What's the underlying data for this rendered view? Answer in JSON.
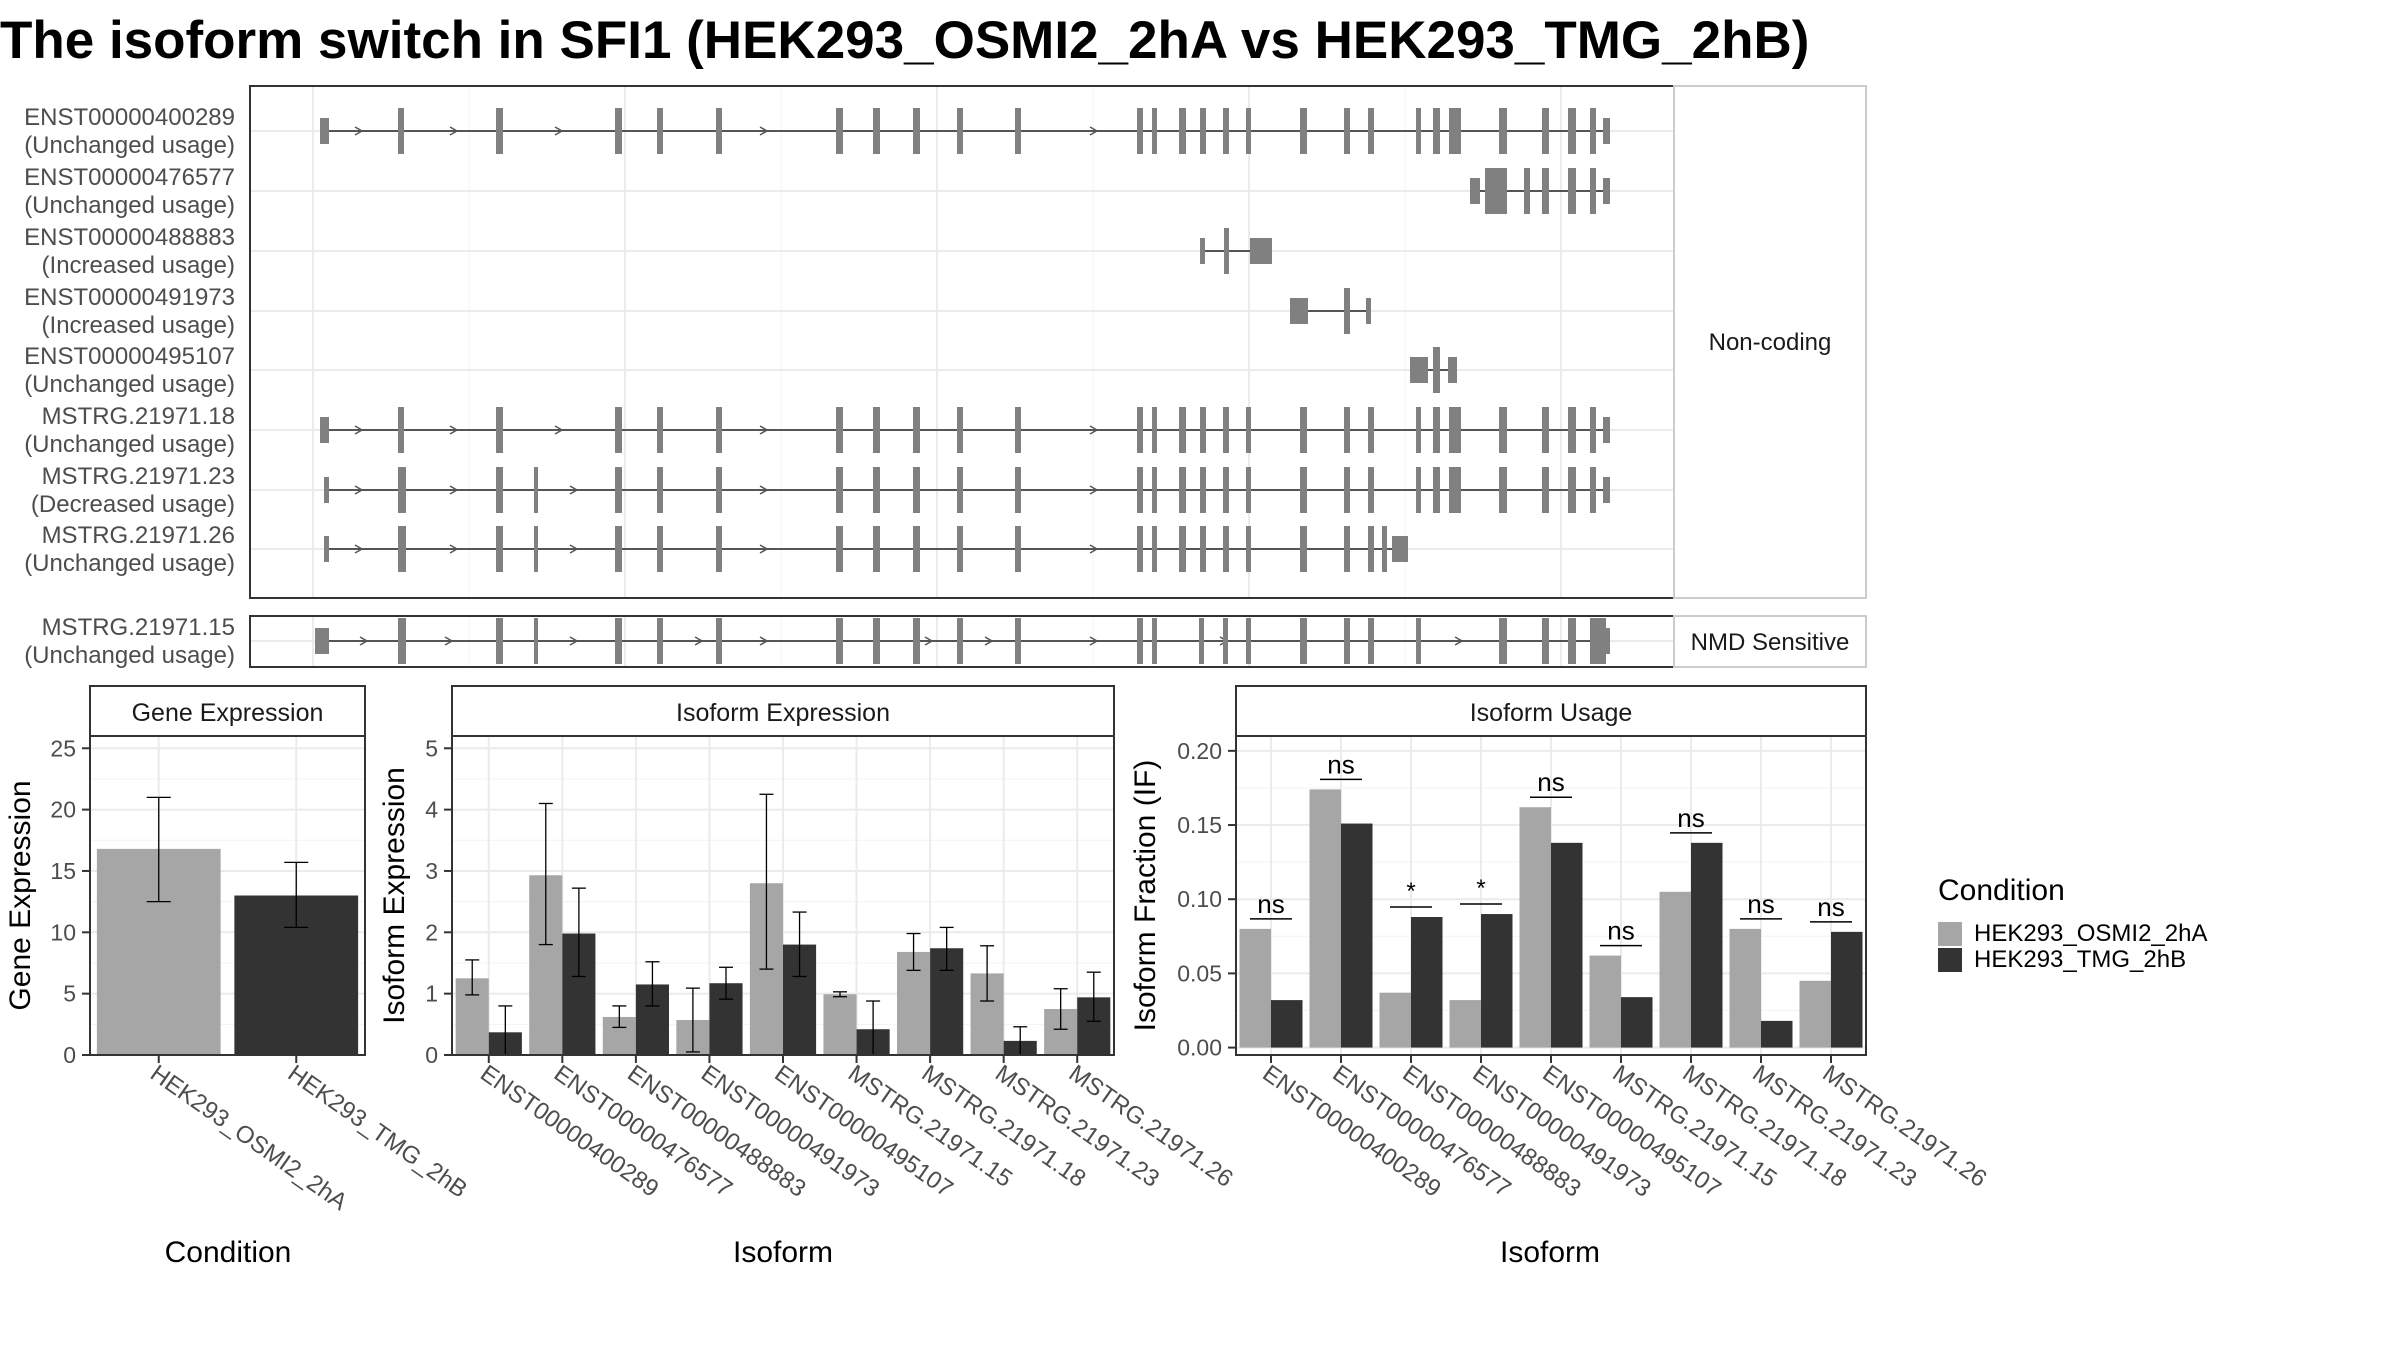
{
  "title": "The isoform switch in SFI1 (HEK293_OSMI2_2hA vs HEK293_TMG_2hB)",
  "colors": {
    "cond1": "#a6a6a6",
    "cond2": "#333333",
    "exon": "#808080",
    "intron": "#555555",
    "grid": "#ebebeb",
    "strip": "#ffffff",
    "frame": "#333333",
    "text": "#4d4d4d"
  },
  "structure": {
    "facets": [
      "Non-coding",
      "NMD Sensitive"
    ],
    "isoforms": [
      {
        "id": "ENST00000400289",
        "usage": "(Unchanged usage)",
        "facet": 0
      },
      {
        "id": "ENST00000476577",
        "usage": "(Unchanged usage)",
        "facet": 0
      },
      {
        "id": "ENST00000488883",
        "usage": "(Increased usage)",
        "facet": 0
      },
      {
        "id": "ENST00000491973",
        "usage": "(Increased usage)",
        "facet": 0
      },
      {
        "id": "ENST00000495107",
        "usage": "(Unchanged usage)",
        "facet": 0
      },
      {
        "id": "MSTRG.21971.18",
        "usage": "(Unchanged usage)",
        "facet": 0
      },
      {
        "id": "MSTRG.21971.23",
        "usage": "(Decreased usage)",
        "facet": 0
      },
      {
        "id": "MSTRG.21971.26",
        "usage": "(Unchanged usage)",
        "facet": 0
      },
      {
        "id": "MSTRG.21971.15",
        "usage": "(Unchanged usage)",
        "facet": 1
      }
    ]
  },
  "legend": {
    "title": "Condition",
    "items": [
      "HEK293_OSMI2_2hA",
      "HEK293_TMG_2hB"
    ]
  },
  "chart_data": [
    {
      "type": "bar",
      "title": "Gene Expression",
      "xlabel": "Condition",
      "ylabel": "Gene Expression",
      "categories": [
        "HEK293_OSMI2_2hA",
        "HEK293_TMG_2hB"
      ],
      "values": [
        16.8,
        13.0
      ],
      "error_low": [
        12.5,
        10.4
      ],
      "error_high": [
        21.0,
        15.7
      ],
      "ylim": [
        0,
        26
      ],
      "yticks": [
        0,
        5,
        10,
        15,
        20,
        25
      ],
      "grid": true
    },
    {
      "type": "bar",
      "title": "Isoform Expression",
      "xlabel": "Isoform",
      "ylabel": "Isoform Expression",
      "categories": [
        "ENST00000400289",
        "ENST00000476577",
        "ENST00000488883",
        "ENST00000491973",
        "ENST00000495107",
        "MSTRG.21971.15",
        "MSTRG.21971.18",
        "MSTRG.21971.23",
        "MSTRG.21971.26"
      ],
      "series": [
        {
          "name": "HEK293_OSMI2_2hA",
          "values": [
            1.25,
            2.93,
            0.62,
            0.57,
            2.8,
            0.99,
            1.68,
            1.33,
            0.75
          ],
          "error_low": [
            0.98,
            1.8,
            0.45,
            0.05,
            1.4,
            0.95,
            1.38,
            0.88,
            0.42
          ],
          "error_high": [
            1.55,
            4.1,
            0.8,
            1.09,
            4.25,
            1.03,
            1.98,
            1.78,
            1.08
          ]
        },
        {
          "name": "HEK293_TMG_2hB",
          "values": [
            0.37,
            1.98,
            1.15,
            1.17,
            1.8,
            0.42,
            1.74,
            0.23,
            0.94
          ],
          "error_low": [
            0.0,
            1.28,
            0.8,
            0.91,
            1.28,
            0.0,
            1.38,
            0.0,
            0.55
          ],
          "error_high": [
            0.8,
            2.72,
            1.52,
            1.43,
            2.33,
            0.88,
            2.08,
            0.46,
            1.35
          ]
        }
      ],
      "ylim": [
        0,
        5.2
      ],
      "yticks": [
        0,
        1,
        2,
        3,
        4,
        5
      ],
      "grid": true
    },
    {
      "type": "bar",
      "title": "Isoform Usage",
      "xlabel": "Isoform",
      "ylabel": "Isoform Fraction (IF)",
      "categories": [
        "ENST00000400289",
        "ENST00000476577",
        "ENST00000488883",
        "ENST00000491973",
        "ENST00000495107",
        "MSTRG.21971.15",
        "MSTRG.21971.18",
        "MSTRG.21971.23",
        "MSTRG.21971.26"
      ],
      "series": [
        {
          "name": "HEK293_OSMI2_2hA",
          "values": [
            0.08,
            0.174,
            0.037,
            0.032,
            0.162,
            0.062,
            0.105,
            0.08,
            0.045
          ]
        },
        {
          "name": "HEK293_TMG_2hB",
          "values": [
            0.032,
            0.151,
            0.088,
            0.09,
            0.138,
            0.034,
            0.138,
            0.018,
            0.078
          ]
        }
      ],
      "significance": [
        "ns",
        "ns",
        "*",
        "*",
        "ns",
        "ns",
        "ns",
        "ns",
        "ns"
      ],
      "ylim": [
        -0.005,
        0.21
      ],
      "yticks": [
        0.0,
        0.05,
        0.1,
        0.15,
        0.2
      ],
      "ytick_labels": [
        "0.00",
        "0.05",
        "0.10",
        "0.15",
        "0.20"
      ],
      "grid": true
    }
  ]
}
